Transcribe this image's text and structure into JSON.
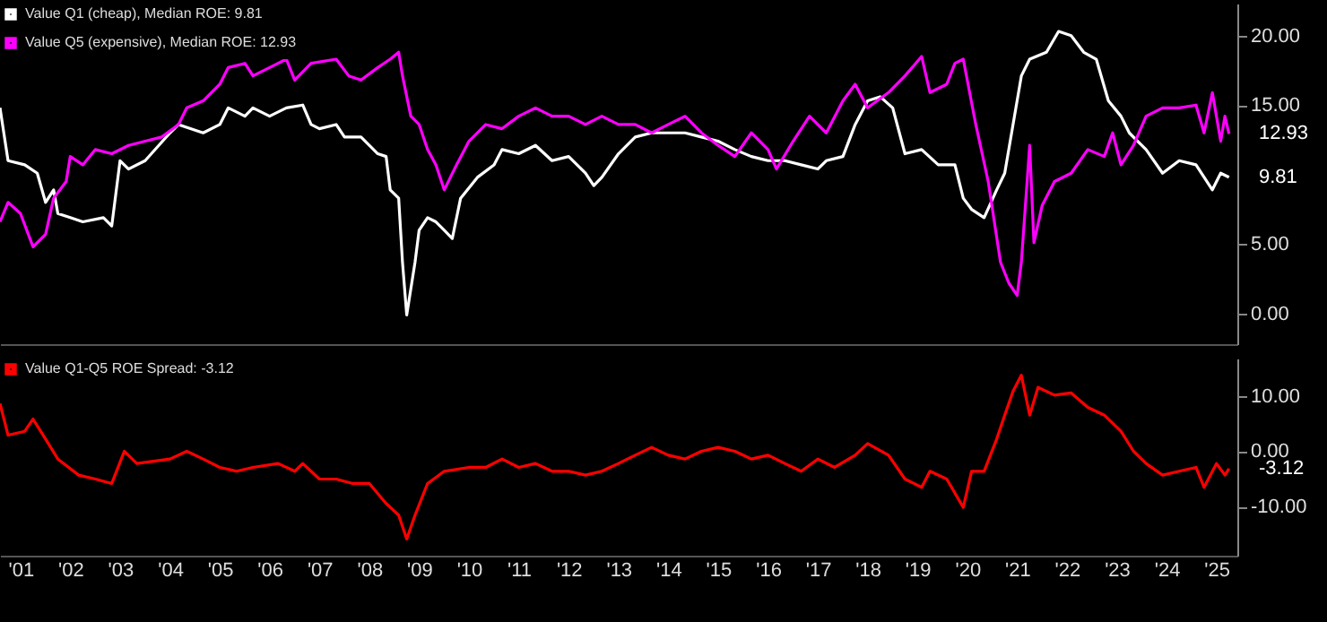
{
  "chart_data": [
    {
      "type": "line",
      "xlim": [
        "2001-02",
        "2025-12"
      ],
      "ylim": [
        -2.2,
        22.3
      ],
      "yticks": [
        {
          "value": 0,
          "label": "0.00"
        },
        {
          "value": 5,
          "label": "5.00"
        },
        {
          "value": 15,
          "label": "15.00"
        },
        {
          "value": 20,
          "label": "20.00"
        }
      ],
      "tick_labels": "y",
      "legend": "top left",
      "annotations": [
        "9.81",
        "12.93"
      ],
      "series": [
        {
          "name": "Value Q1 (cheap), Median ROE:  9.81",
          "color": "#ffffff",
          "x": [
            "2001-02",
            "2001-04",
            "2001-08",
            "2001-11",
            "2002-01",
            "2002-03",
            "2002-04",
            "2002-07",
            "2002-10",
            "2003-03",
            "2003-05",
            "2003-07",
            "2003-09",
            "2004-01",
            "2004-07",
            "2004-09",
            "2005-03",
            "2005-07",
            "2005-09",
            "2006-01",
            "2006-03",
            "2006-07",
            "2006-11",
            "2007-03",
            "2007-05",
            "2007-07",
            "2007-11",
            "2008-01",
            "2008-05",
            "2008-09",
            "2008-11",
            "2008-12",
            "2009-02",
            "2009-03",
            "2009-04",
            "2009-06",
            "2009-07",
            "2009-09",
            "2009-11",
            "2010-01",
            "2010-03",
            "2010-05",
            "2010-09",
            "2011-01",
            "2011-03",
            "2011-07",
            "2011-11",
            "2012-03",
            "2012-07",
            "2012-11",
            "2013-01",
            "2013-03",
            "2013-07",
            "2013-11",
            "2014-03",
            "2014-07",
            "2014-11",
            "2015-03",
            "2015-07",
            "2015-11",
            "2016-03",
            "2016-07",
            "2016-11",
            "2017-03",
            "2017-07",
            "2017-09",
            "2018-01",
            "2018-04",
            "2018-07",
            "2018-10",
            "2019-01",
            "2019-04",
            "2019-08",
            "2019-12",
            "2020-04",
            "2020-06",
            "2020-08",
            "2020-11",
            "2021-02",
            "2021-04",
            "2021-06",
            "2021-08",
            "2021-10",
            "2022-02",
            "2022-05",
            "2022-08",
            "2022-11",
            "2023-02",
            "2023-05",
            "2023-08",
            "2023-10",
            "2024-02",
            "2024-06",
            "2024-10",
            "2025-02",
            "2025-06",
            "2025-08",
            "2025-10"
          ],
          "values": [
            14.8,
            11.0,
            10.7,
            10.1,
            8.0,
            8.9,
            7.2,
            6.9,
            6.6,
            6.9,
            6.3,
            11.0,
            10.4,
            11.0,
            13.0,
            13.6,
            13.0,
            13.6,
            14.8,
            14.2,
            14.8,
            14.2,
            14.8,
            15.0,
            13.6,
            13.3,
            13.6,
            12.7,
            12.7,
            11.5,
            11.3,
            8.9,
            8.3,
            3.7,
            -0.1,
            3.7,
            6.0,
            6.9,
            6.6,
            6.0,
            5.4,
            8.3,
            9.8,
            10.7,
            11.8,
            11.5,
            12.1,
            11.0,
            11.3,
            10.1,
            9.2,
            9.8,
            11.5,
            12.7,
            13.0,
            13.0,
            13.0,
            12.7,
            12.4,
            11.8,
            11.3,
            11.0,
            11.0,
            10.7,
            10.4,
            11.0,
            11.3,
            13.6,
            15.3,
            15.6,
            14.8,
            11.5,
            11.8,
            10.7,
            10.7,
            8.3,
            7.5,
            6.9,
            8.9,
            10.1,
            13.6,
            17.1,
            18.3,
            18.8,
            20.3,
            20.0,
            18.8,
            18.3,
            15.3,
            14.2,
            13.0,
            11.8,
            10.1,
            11.0,
            10.7,
            8.9,
            10.1,
            9.81
          ]
        },
        {
          "name": "Value Q5 (expensive), Median ROE: 12.93",
          "color": "#ff00ff",
          "x": [
            "2001-02",
            "2001-04",
            "2001-07",
            "2001-10",
            "2002-01",
            "2002-03",
            "2002-06",
            "2002-07",
            "2002-10",
            "2003-01",
            "2003-05",
            "2003-09",
            "2004-01",
            "2004-05",
            "2004-09",
            "2004-11",
            "2005-03",
            "2005-07",
            "2005-09",
            "2006-01",
            "2006-03",
            "2006-07",
            "2006-11",
            "2007-01",
            "2007-05",
            "2007-11",
            "2008-02",
            "2008-05",
            "2008-09",
            "2008-12",
            "2009-02",
            "2009-03",
            "2009-05",
            "2009-07",
            "2009-09",
            "2009-11",
            "2010-01",
            "2010-04",
            "2010-07",
            "2010-11",
            "2011-03",
            "2011-07",
            "2011-11",
            "2012-03",
            "2012-07",
            "2012-11",
            "2013-03",
            "2013-07",
            "2013-11",
            "2014-03",
            "2014-07",
            "2014-11",
            "2015-03",
            "2015-07",
            "2015-11",
            "2016-03",
            "2016-07",
            "2016-09",
            "2017-01",
            "2017-05",
            "2017-09",
            "2018-01",
            "2018-04",
            "2018-07",
            "2018-12",
            "2019-04",
            "2019-08",
            "2019-10",
            "2020-02",
            "2020-04",
            "2020-06",
            "2020-09",
            "2020-12",
            "2021-03",
            "2021-05",
            "2021-07",
            "2021-08",
            "2021-10",
            "2021-11",
            "2022-01",
            "2022-04",
            "2022-08",
            "2022-12",
            "2023-04",
            "2023-06",
            "2023-08",
            "2023-11",
            "2024-02",
            "2024-06",
            "2024-10",
            "2025-02",
            "2025-04",
            "2025-06",
            "2025-08",
            "2025-09",
            "2025-10"
          ],
          "values": [
            6.6,
            8.0,
            7.2,
            4.8,
            5.7,
            8.3,
            9.5,
            11.3,
            10.7,
            11.8,
            11.5,
            12.1,
            12.4,
            12.7,
            13.6,
            14.8,
            15.3,
            16.5,
            17.7,
            18.0,
            17.1,
            17.7,
            18.3,
            16.8,
            18.0,
            18.3,
            17.1,
            16.8,
            17.7,
            18.3,
            18.8,
            17.1,
            14.2,
            13.6,
            11.8,
            10.7,
            8.9,
            10.7,
            12.4,
            13.6,
            13.3,
            14.2,
            14.8,
            14.2,
            14.2,
            13.6,
            14.2,
            13.6,
            13.6,
            13.0,
            13.6,
            14.2,
            13.0,
            12.1,
            11.3,
            13.0,
            11.8,
            10.4,
            12.4,
            14.2,
            13.0,
            15.3,
            16.5,
            14.8,
            15.9,
            17.1,
            18.5,
            15.9,
            16.5,
            18.0,
            18.3,
            13.6,
            9.5,
            3.7,
            2.2,
            1.3,
            3.7,
            12.1,
            5.1,
            7.8,
            9.5,
            10.1,
            11.8,
            11.3,
            13.0,
            10.7,
            12.1,
            14.2,
            14.8,
            14.8,
            15.0,
            13.0,
            15.9,
            12.4,
            14.2,
            12.93
          ]
        }
      ]
    },
    {
      "type": "line",
      "xlim": [
        "2001-02",
        "2025-12"
      ],
      "ylim": [
        -18.8,
        16.7
      ],
      "yticks": [
        {
          "value": -10,
          "label": "-10.00"
        },
        {
          "value": 0,
          "label": "0.00"
        },
        {
          "value": 10,
          "label": "10.00"
        }
      ],
      "xticks": [
        {
          "value": "2001-07",
          "label": "'01"
        },
        {
          "value": "2002-07",
          "label": "'02"
        },
        {
          "value": "2003-07",
          "label": "'03"
        },
        {
          "value": "2004-07",
          "label": "'04"
        },
        {
          "value": "2005-07",
          "label": "'05"
        },
        {
          "value": "2006-07",
          "label": "'06"
        },
        {
          "value": "2007-07",
          "label": "'07"
        },
        {
          "value": "2008-07",
          "label": "'08"
        },
        {
          "value": "2009-07",
          "label": "'09"
        },
        {
          "value": "2010-07",
          "label": "'10"
        },
        {
          "value": "2011-07",
          "label": "'11"
        },
        {
          "value": "2012-07",
          "label": "'12"
        },
        {
          "value": "2013-07",
          "label": "'13"
        },
        {
          "value": "2014-07",
          "label": "'14"
        },
        {
          "value": "2015-07",
          "label": "'15"
        },
        {
          "value": "2016-07",
          "label": "'16"
        },
        {
          "value": "2017-07",
          "label": "'17"
        },
        {
          "value": "2018-07",
          "label": "'18"
        },
        {
          "value": "2019-07",
          "label": "'19"
        },
        {
          "value": "2020-07",
          "label": "'20"
        },
        {
          "value": "2021-07",
          "label": "'21"
        },
        {
          "value": "2022-07",
          "label": "'22"
        },
        {
          "value": "2023-07",
          "label": "'23"
        },
        {
          "value": "2024-07",
          "label": "'24"
        },
        {
          "value": "2025-07",
          "label": "'25"
        }
      ],
      "legend": "top left",
      "annotations": [
        "-3.12"
      ],
      "series": [
        {
          "name": "Value Q1-Q5 ROE Spread: -3.12",
          "color": "#ff0000",
          "x": [
            "2001-02",
            "2001-04",
            "2001-08",
            "2001-10",
            "2002-01",
            "2002-04",
            "2002-09",
            "2003-01",
            "2003-05",
            "2003-08",
            "2003-11",
            "2004-07",
            "2004-11",
            "2005-03",
            "2005-07",
            "2005-11",
            "2006-03",
            "2006-09",
            "2007-01",
            "2007-03",
            "2007-07",
            "2007-11",
            "2008-03",
            "2008-07",
            "2008-11",
            "2009-02",
            "2009-04",
            "2009-06",
            "2009-09",
            "2010-01",
            "2010-07",
            "2010-11",
            "2011-03",
            "2011-07",
            "2011-11",
            "2012-03",
            "2012-07",
            "2012-11",
            "2013-03",
            "2013-07",
            "2013-11",
            "2014-03",
            "2014-07",
            "2014-11",
            "2015-03",
            "2015-07",
            "2015-11",
            "2016-03",
            "2016-07",
            "2016-11",
            "2017-03",
            "2017-07",
            "2017-11",
            "2018-04",
            "2018-07",
            "2018-12",
            "2019-04",
            "2019-08",
            "2019-10",
            "2020-02",
            "2020-06",
            "2020-08",
            "2020-11",
            "2021-02",
            "2021-04",
            "2021-06",
            "2021-08",
            "2021-10",
            "2021-12",
            "2022-04",
            "2022-08",
            "2022-12",
            "2023-04",
            "2023-08",
            "2023-11",
            "2024-02",
            "2024-06",
            "2024-10",
            "2025-02",
            "2025-04",
            "2025-07",
            "2025-09",
            "2025-10"
          ],
          "values": [
            8.6,
            2.9,
            3.6,
            5.8,
            2.2,
            -1.4,
            -4.3,
            -5.0,
            -5.8,
            0,
            -2.2,
            -1.4,
            0,
            -1.4,
            -2.9,
            -3.6,
            -2.9,
            -2.2,
            -3.6,
            -2.2,
            -5.0,
            -5.0,
            -5.8,
            -5.8,
            -9.4,
            -11.5,
            -15.8,
            -11.5,
            -5.8,
            -3.6,
            -2.9,
            -2.9,
            -1.4,
            -2.9,
            -2.2,
            -3.6,
            -3.6,
            -4.3,
            -3.6,
            -2.2,
            -0.7,
            0.7,
            -0.7,
            -1.4,
            0,
            0.7,
            0,
            -1.4,
            -0.7,
            -2.2,
            -3.6,
            -1.4,
            -2.9,
            -0.7,
            1.4,
            -0.7,
            -5.0,
            -6.5,
            -3.6,
            -5.0,
            -10.1,
            -3.6,
            -3.6,
            2.2,
            6.5,
            10.8,
            13.7,
            6.5,
            11.5,
            10.1,
            10.5,
            7.9,
            6.5,
            3.6,
            0,
            -2.2,
            -4.3,
            -3.6,
            -2.9,
            -6.5,
            -2.2,
            -4.3,
            -3.12
          ]
        }
      ]
    }
  ]
}
